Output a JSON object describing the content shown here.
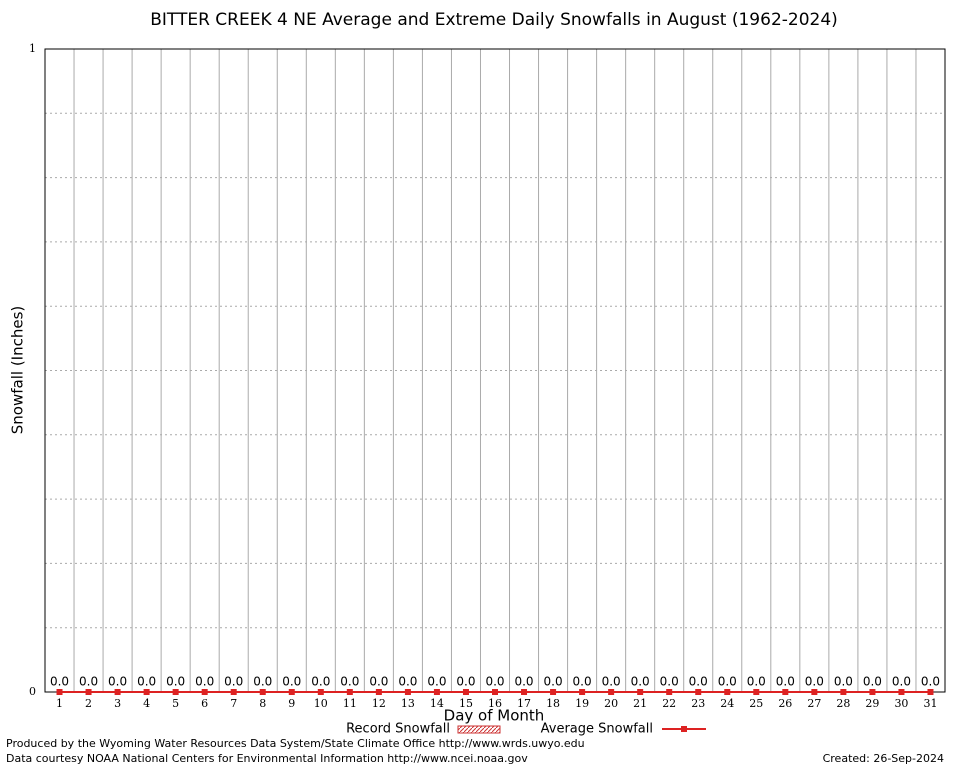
{
  "chart_data": {
    "type": "bar",
    "title": "BITTER CREEK 4 NE Average and Extreme Daily Snowfalls in August (1962-2024)",
    "x_label": "Day of Month",
    "y_label": "Snowfall (Inches)",
    "categories": [
      "1",
      "2",
      "3",
      "4",
      "5",
      "6",
      "7",
      "8",
      "9",
      "10",
      "11",
      "12",
      "13",
      "14",
      "15",
      "16",
      "17",
      "18",
      "19",
      "20",
      "21",
      "22",
      "23",
      "24",
      "25",
      "26",
      "27",
      "28",
      "29",
      "30",
      "31"
    ],
    "series": [
      {
        "name": "Record Snowfall",
        "color": "#cc3333",
        "values": [
          0,
          0,
          0,
          0,
          0,
          0,
          0,
          0,
          0,
          0,
          0,
          0,
          0,
          0,
          0,
          0,
          0,
          0,
          0,
          0,
          0,
          0,
          0,
          0,
          0,
          0,
          0,
          0,
          0,
          0,
          0
        ]
      },
      {
        "name": "Average Snowfall",
        "color": "#dd2222",
        "values": [
          0,
          0,
          0,
          0,
          0,
          0,
          0,
          0,
          0,
          0,
          0,
          0,
          0,
          0,
          0,
          0,
          0,
          0,
          0,
          0,
          0,
          0,
          0,
          0,
          0,
          0,
          0,
          0,
          0,
          0,
          0
        ],
        "value_labels": [
          "0.0",
          "0.0",
          "0.0",
          "0.0",
          "0.0",
          "0.0",
          "0.0",
          "0.0",
          "0.0",
          "0.0",
          "0.0",
          "0.0",
          "0.0",
          "0.0",
          "0.0",
          "0.0",
          "0.0",
          "0.0",
          "0.0",
          "0.0",
          "0.0",
          "0.0",
          "0.0",
          "0.0",
          "0.0",
          "0.0",
          "0.0",
          "0.0",
          "0.0",
          "0.0",
          "0.0"
        ]
      }
    ],
    "ylim": [
      0,
      1
    ],
    "yticks": [
      0,
      1
    ],
    "grid": true,
    "footer_left": [
      "Produced by the Wyoming Water Resources Data System/State Climate Office http://www.wrds.uwyo.edu",
      "Data courtesy NOAA National Centers for Environmental Information http://www.ncei.noaa.gov"
    ],
    "footer_right": "Created:  26-Sep-2024"
  }
}
